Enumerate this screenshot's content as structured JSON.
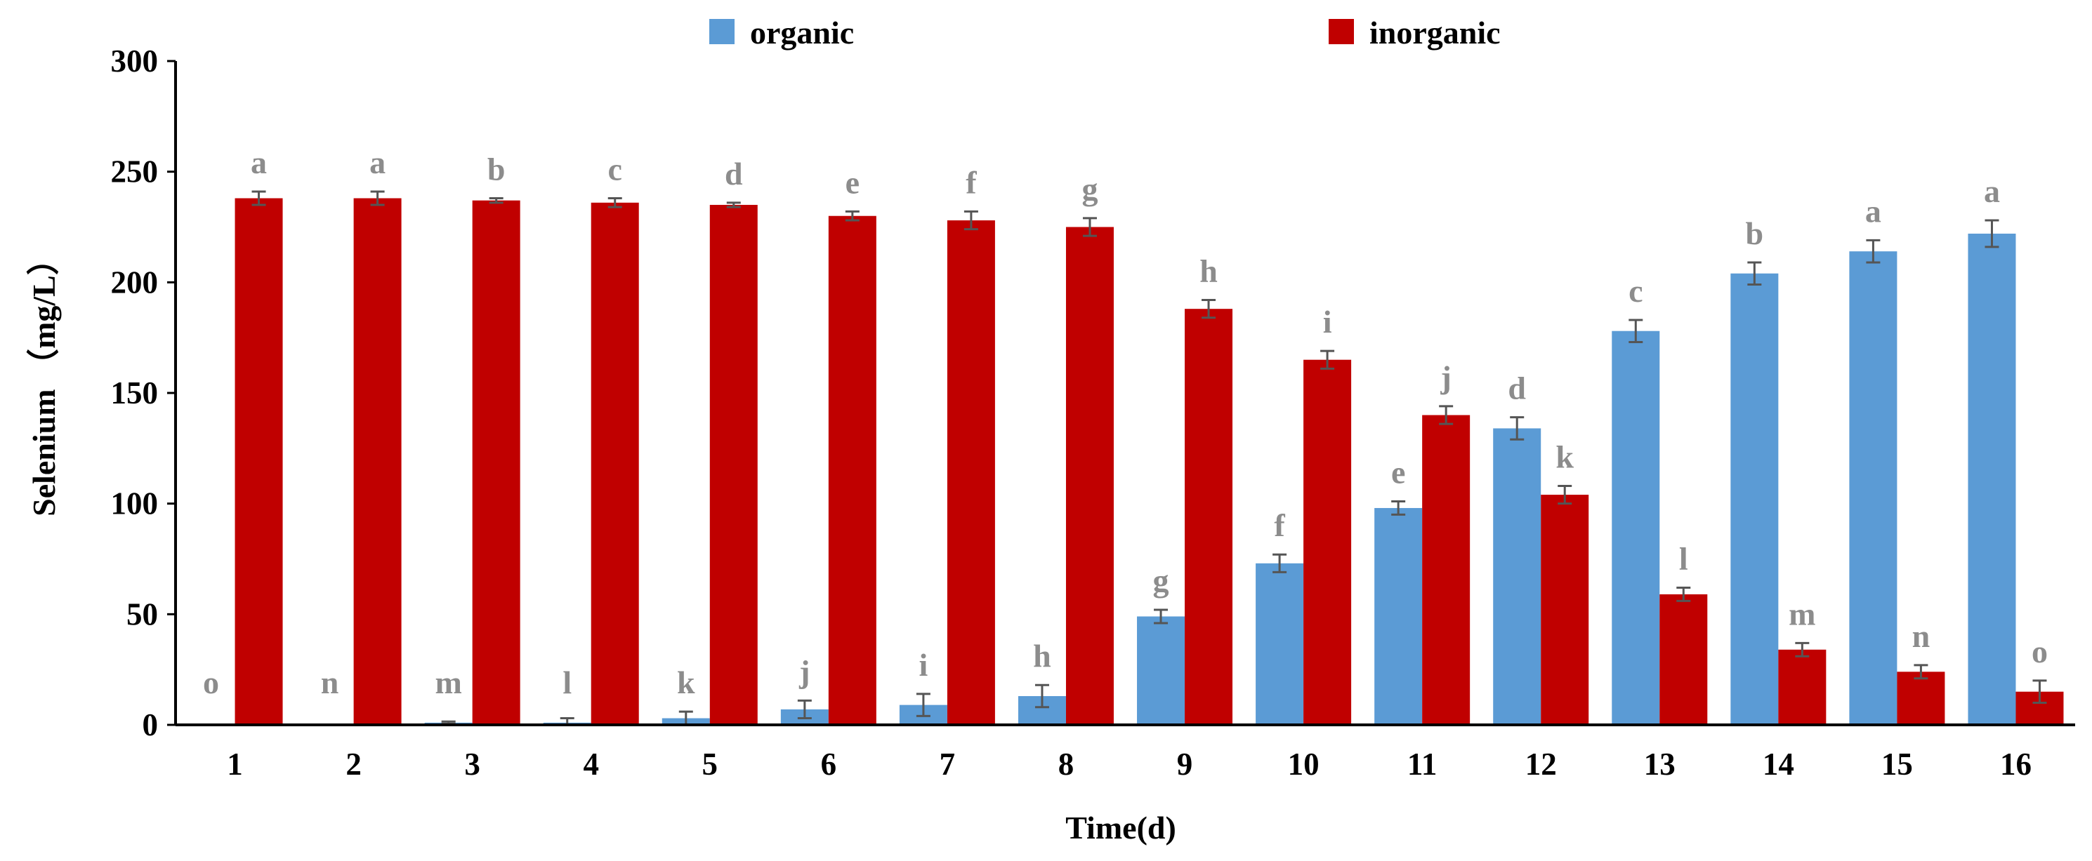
{
  "chart_data": {
    "type": "bar",
    "title": "",
    "xlabel": "Time(d)",
    "ylabel": "Selenium （mg/L）",
    "ylim": [
      0,
      300
    ],
    "yticks": [
      0,
      50,
      100,
      150,
      200,
      250,
      300
    ],
    "grid": false,
    "legend_position": "top",
    "categories": [
      "1",
      "2",
      "3",
      "4",
      "5",
      "6",
      "7",
      "8",
      "9",
      "10",
      "11",
      "12",
      "13",
      "14",
      "15",
      "16"
    ],
    "series": [
      {
        "name": "organic",
        "color": "#5b9bd5",
        "values": [
          0,
          0,
          1,
          1,
          3,
          7,
          9,
          13,
          49,
          73,
          98,
          134,
          178,
          204,
          214,
          222
        ],
        "errors": [
          0,
          0,
          0.5,
          2,
          3,
          4,
          5,
          5,
          3,
          4,
          3,
          5,
          5,
          5,
          5,
          6
        ],
        "letters": [
          "o",
          "n",
          "m",
          "l",
          "k",
          "j",
          "i",
          "h",
          "g",
          "f",
          "e",
          "d",
          "c",
          "b",
          "a",
          "a"
        ]
      },
      {
        "name": "inorganic",
        "color": "#c00000",
        "values": [
          238,
          238,
          237,
          236,
          235,
          230,
          228,
          225,
          188,
          165,
          140,
          104,
          59,
          34,
          24,
          15
        ],
        "errors": [
          3,
          3,
          1,
          2,
          1,
          2,
          4,
          4,
          4,
          4,
          4,
          4,
          3,
          3,
          3,
          5
        ],
        "letters": [
          "a",
          "a",
          "b",
          "c",
          "d",
          "e",
          "f",
          "g",
          "h",
          "i",
          "j",
          "k",
          "l",
          "m",
          "n",
          "o"
        ]
      }
    ]
  }
}
